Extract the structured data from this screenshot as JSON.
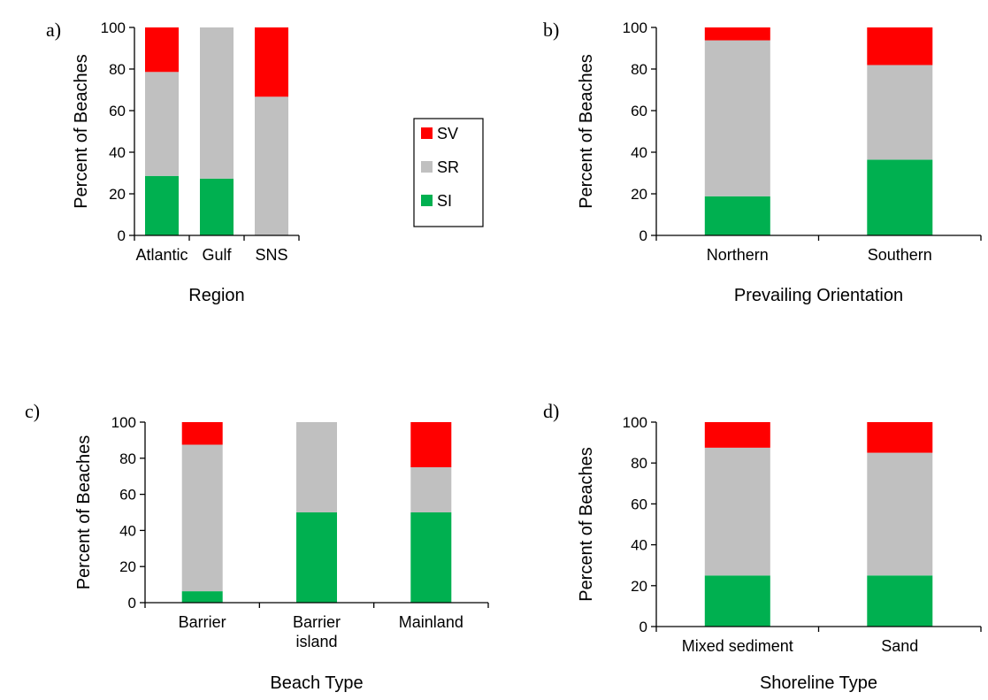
{
  "colors": {
    "SI": "#00b050",
    "SR": "#c0c0c0",
    "SV": "#ff0000"
  },
  "legend": {
    "placement": "right of panel a",
    "entries": [
      {
        "key": "SV",
        "label": "SV"
      },
      {
        "key": "SR",
        "label": "SR"
      },
      {
        "key": "SI",
        "label": "SI"
      }
    ]
  },
  "chart_data": [
    {
      "type": "bar",
      "stacked": true,
      "panel_label": "a)",
      "xlabel": "Region",
      "ylabel": "Percent of Beaches",
      "ylim": [
        0,
        100
      ],
      "yticks": [
        "0",
        "20",
        "40",
        "60",
        "80",
        "100"
      ],
      "categories": [
        [
          "Atlantic"
        ],
        [
          "Gulf"
        ],
        [
          "SNS"
        ]
      ],
      "series": [
        {
          "name": "SI",
          "values": [
            28.6,
            27.3,
            0
          ]
        },
        {
          "name": "SR",
          "values": [
            50.0,
            72.7,
            66.7
          ]
        },
        {
          "name": "SV",
          "values": [
            21.4,
            0,
            33.3
          ]
        }
      ]
    },
    {
      "type": "bar",
      "stacked": true,
      "panel_label": "b)",
      "xlabel": "Prevailing Orientation",
      "ylabel": "Percent of Beaches",
      "ylim": [
        0,
        100
      ],
      "yticks": [
        "0",
        "20",
        "40",
        "60",
        "80",
        "100"
      ],
      "categories": [
        [
          "Northern"
        ],
        [
          "Southern"
        ]
      ],
      "series": [
        {
          "name": "SI",
          "values": [
            18.8,
            36.4
          ]
        },
        {
          "name": "SR",
          "values": [
            75.0,
            45.5
          ]
        },
        {
          "name": "SV",
          "values": [
            6.2,
            18.1
          ]
        }
      ]
    },
    {
      "type": "bar",
      "stacked": true,
      "panel_label": "c)",
      "xlabel": "Beach Type",
      "ylabel": "Percent of Beaches",
      "ylim": [
        0,
        100
      ],
      "yticks": [
        "0",
        "20",
        "40",
        "60",
        "80",
        "100"
      ],
      "categories": [
        [
          "Barrier"
        ],
        [
          "Barrier",
          "island"
        ],
        [
          "Mainland"
        ]
      ],
      "series": [
        {
          "name": "SI",
          "values": [
            6.3,
            50.0,
            50.0
          ]
        },
        {
          "name": "SR",
          "values": [
            81.2,
            50.0,
            25.0
          ]
        },
        {
          "name": "SV",
          "values": [
            12.5,
            0,
            25.0
          ]
        }
      ]
    },
    {
      "type": "bar",
      "stacked": true,
      "panel_label": "d)",
      "xlabel": "Shoreline Type",
      "ylabel": "Percent of Beaches",
      "ylim": [
        0,
        100
      ],
      "yticks": [
        "0",
        "20",
        "40",
        "60",
        "80",
        "100"
      ],
      "categories": [
        [
          "Mixed sediment"
        ],
        [
          "Sand"
        ]
      ],
      "series": [
        {
          "name": "SI",
          "values": [
            25.0,
            25.0
          ]
        },
        {
          "name": "SR",
          "values": [
            62.5,
            60.0
          ]
        },
        {
          "name": "SV",
          "values": [
            12.5,
            15.0
          ]
        }
      ]
    }
  ]
}
